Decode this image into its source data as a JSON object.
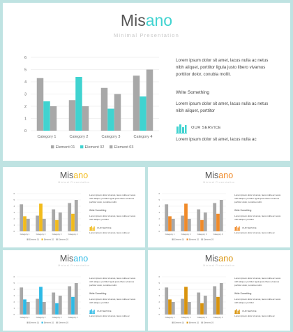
{
  "title_prefix": "Mis",
  "title_accent": "ano",
  "subtitle": "Minimal Presentation",
  "paragraph1": "Lorem ipsum dolor sit amet, lacus nulla ac netus nibh aliquet, porttitor ligula justo libero vivamus porttitor dolor, conubia mollit.",
  "write_something": "Write Something",
  "paragraph2": "Lorem ipsum dolor sit amet, lacus nulla ac netus nibh aliquet, porttitor",
  "service_label": "OUR SERVICE",
  "paragraph3": "Lorem ipsum dolor sit amet, lacus nulla ac",
  "colors": {
    "grey": "#a8a8a8",
    "teal": "#40d3d0",
    "yellow": "#f2bb1c",
    "orange": "#f08b2a",
    "blue": "#2ebae6",
    "gold": "#d9940e",
    "axis_text": "#666666",
    "grid": "#e5e5e5"
  },
  "slides": [
    {
      "accent": "#40d3d0",
      "accent_color_name": "teal"
    },
    {
      "accent": "#f2bb1c",
      "accent_color_name": "yellow"
    },
    {
      "accent": "#f08b2a",
      "accent_color_name": "orange"
    },
    {
      "accent": "#2ebae6",
      "accent_color_name": "blue"
    },
    {
      "accent": "#d9940e",
      "accent_color_name": "gold"
    }
  ],
  "chart_data": {
    "type": "bar",
    "categories": [
      "Category 1",
      "Category 2",
      "Category 3",
      "Category 4"
    ],
    "series": [
      {
        "name": "Element 01",
        "values": [
          4.3,
          2.5,
          3.5,
          4.5
        ],
        "color_role": "grey"
      },
      {
        "name": "Element 02",
        "values": [
          2.4,
          4.4,
          1.8,
          2.8
        ],
        "color_role": "accent"
      },
      {
        "name": "Element 03",
        "values": [
          2.0,
          2.0,
          3.0,
          5.0
        ],
        "color_role": "grey"
      }
    ],
    "ylim": [
      0,
      6
    ],
    "yticks": [
      0,
      1,
      2,
      3,
      4,
      5,
      6
    ],
    "grid": true,
    "legend_position": "bottom"
  }
}
